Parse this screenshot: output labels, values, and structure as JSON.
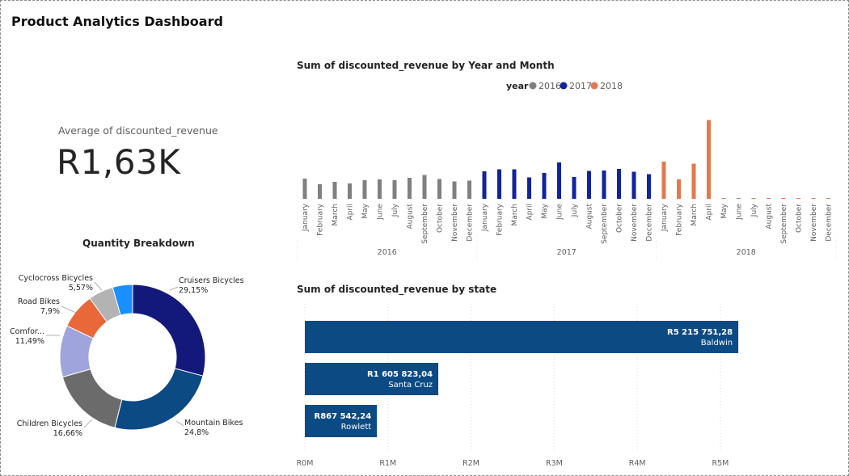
{
  "page": {
    "title": "Product Analytics Dashboard"
  },
  "kpi": {
    "label": "Average of discounted_revenue",
    "value": "R1,63K"
  },
  "colors": {
    "y2016": "#808080",
    "y2017": "#12239e",
    "y2018": "#e07a4f",
    "bar": "#0c4a84",
    "donut": [
      "#12197a",
      "#0c4a84",
      "#6b6b6b",
      "#a0a4dc",
      "#e8683a",
      "#b3b3b3",
      "#1a8fff"
    ]
  },
  "chart_data": [
    {
      "type": "bar",
      "title": "Sum of discounted_revenue by Year and Month",
      "legend": {
        "title": "year",
        "entries": [
          "2016",
          "2017",
          "2018"
        ],
        "placement": "top-center"
      },
      "months": [
        "January",
        "February",
        "March",
        "April",
        "May",
        "June",
        "July",
        "August",
        "September",
        "October",
        "November",
        "December"
      ],
      "years": [
        "2016",
        "2017",
        "2018"
      ],
      "series": [
        {
          "name": "2016",
          "values": [
            50,
            36,
            42,
            38,
            46,
            48,
            46,
            52,
            59,
            49,
            43,
            45
          ]
        },
        {
          "name": "2017",
          "values": [
            68,
            73,
            73,
            53,
            64,
            90,
            54,
            69,
            70,
            74,
            67,
            61
          ]
        },
        {
          "name": "2018",
          "values": [
            92,
            48,
            87,
            195,
            1,
            1,
            2,
            1,
            1,
            1,
            1,
            1
          ]
        }
      ],
      "ylim": [
        0,
        200
      ]
    },
    {
      "type": "pie",
      "title": "Quantity Breakdown",
      "slices": [
        {
          "label": "Cruisers Bicycles",
          "pct_label": "29,15%",
          "value": 29.15
        },
        {
          "label": "Mountain Bikes",
          "pct_label": "24,8%",
          "value": 24.8
        },
        {
          "label": "Children Bicycles",
          "pct_label": "16,66%",
          "value": 16.66
        },
        {
          "label": "Comfor...",
          "pct_label": "11,49%",
          "value": 11.49
        },
        {
          "label": "Road Bikes",
          "pct_label": "7,9%",
          "value": 7.9
        },
        {
          "label": "Cyclocross Bicycles",
          "pct_label": "5,57%",
          "value": 5.57
        },
        {
          "label": "",
          "pct_label": "",
          "value": 4.43
        }
      ]
    },
    {
      "type": "bar",
      "orientation": "horizontal",
      "title": "Sum of discounted_revenue by state",
      "bars": [
        {
          "state": "Baldwin",
          "label": "R5 215 751,28",
          "value": 5215751.28
        },
        {
          "state": "Santa Cruz",
          "label": "R1 605 823,04",
          "value": 1605823.04
        },
        {
          "state": "Rowlett",
          "label": "R867 542,24",
          "value": 867542.24
        }
      ],
      "ticks": [
        {
          "label": "R0M",
          "value": 0
        },
        {
          "label": "R1M",
          "value": 1000000
        },
        {
          "label": "R2M",
          "value": 2000000
        },
        {
          "label": "R3M",
          "value": 3000000
        },
        {
          "label": "R4M",
          "value": 4000000
        },
        {
          "label": "R5M",
          "value": 5000000
        }
      ],
      "xlim": [
        0,
        6100000
      ]
    }
  ]
}
